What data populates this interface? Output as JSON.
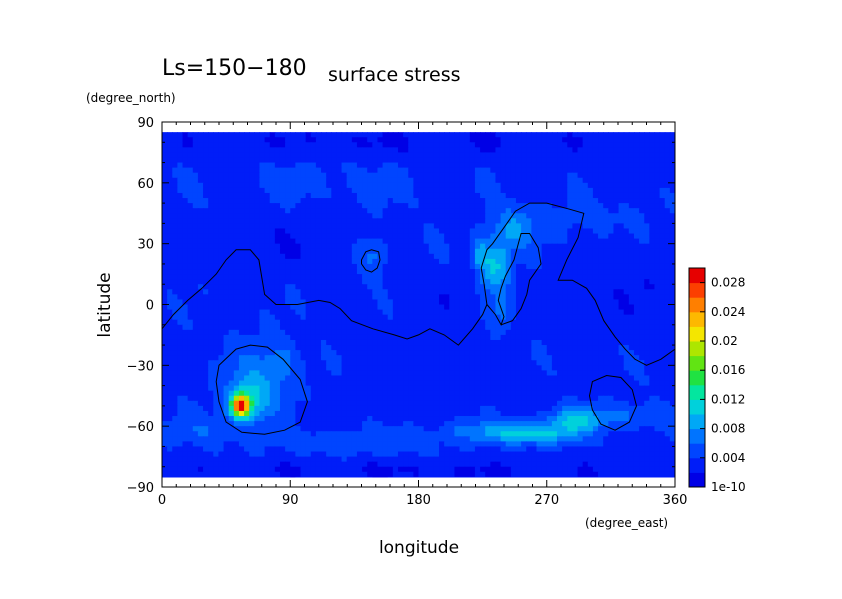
{
  "chart_data": {
    "type": "heatmap",
    "title": "Ls=150−180",
    "subtitle": "surface stress",
    "xlabel": "longitude",
    "ylabel": "latitude",
    "x_unit": "(degree_east)",
    "y_unit": "(degree_north)",
    "xlim": [
      0,
      360
    ],
    "ylim": [
      -90,
      90
    ],
    "x_ticks": [
      "0",
      "90",
      "180",
      "270",
      "360"
    ],
    "y_ticks": [
      "90",
      "60",
      "30",
      "0",
      "−30",
      "−60",
      "−90"
    ],
    "data_lat_range": [
      -85,
      85
    ],
    "colorbar": {
      "min": 1e-10,
      "max": 0.03,
      "labels": [
        "1e-10",
        "0.004",
        "0.008",
        "0.012",
        "0.016",
        "0.02",
        "0.024",
        "0.028"
      ]
    },
    "base_value": 0.0035,
    "blobs": [
      {
        "lon": 55,
        "lat": -50,
        "rx": 6,
        "ry": 5,
        "amp": 0.022
      },
      {
        "lon": 60,
        "lat": -48,
        "rx": 14,
        "ry": 10,
        "amp": 0.006
      },
      {
        "lon": 68,
        "lat": -38,
        "rx": 22,
        "ry": 18,
        "amp": 0.0035
      },
      {
        "lon": 85,
        "lat": -28,
        "rx": 12,
        "ry": 10,
        "amp": 0.0025
      },
      {
        "lon": 230,
        "lat": 20,
        "rx": 8,
        "ry": 14,
        "amp": 0.0065
      },
      {
        "lon": 222,
        "lat": 25,
        "rx": 4,
        "ry": 8,
        "amp": 0.004
      },
      {
        "lon": 240,
        "lat": 20,
        "rx": 6,
        "ry": 12,
        "amp": 0.0045
      },
      {
        "lon": 248,
        "lat": 38,
        "rx": 14,
        "ry": 10,
        "amp": 0.0045
      },
      {
        "lon": 238,
        "lat": -5,
        "rx": 7,
        "ry": 10,
        "amp": 0.003
      },
      {
        "lon": 148,
        "lat": 24,
        "rx": 10,
        "ry": 10,
        "amp": 0.0035
      },
      {
        "lon": 262,
        "lat": -64,
        "rx": 28,
        "ry": 5,
        "amp": 0.0065
      },
      {
        "lon": 290,
        "lat": -57,
        "rx": 18,
        "ry": 6,
        "amp": 0.0065
      },
      {
        "lon": 230,
        "lat": -62,
        "rx": 35,
        "ry": 5,
        "amp": 0.0035
      },
      {
        "lon": 330,
        "lat": -55,
        "rx": 30,
        "ry": 6,
        "amp": 0.003
      },
      {
        "lon": 140,
        "lat": -68,
        "rx": 60,
        "ry": 6,
        "amp": 0.002
      },
      {
        "lon": 30,
        "lat": -62,
        "rx": 25,
        "ry": 7,
        "amp": 0.002
      },
      {
        "lon": 300,
        "lat": 42,
        "rx": 40,
        "ry": 10,
        "amp": 0.0012
      },
      {
        "lon": 120,
        "lat": 60,
        "rx": 80,
        "ry": 12,
        "amp": 0.001
      },
      {
        "lon": 90,
        "lat": 30,
        "rx": 50,
        "ry": 15,
        "amp": -0.001
      },
      {
        "lon": 200,
        "lat": 0,
        "rx": 40,
        "ry": 15,
        "amp": -0.0008
      },
      {
        "lon": 330,
        "lat": 10,
        "rx": 30,
        "ry": 20,
        "amp": -0.0012
      },
      {
        "lon": 180,
        "lat": -40,
        "rx": 60,
        "ry": 15,
        "amp": -0.0008
      },
      {
        "lon": 180,
        "lat": 80,
        "rx": 200,
        "ry": 8,
        "amp": -0.0015
      },
      {
        "lon": 180,
        "lat": -82,
        "rx": 200,
        "ry": 5,
        "amp": -0.0015
      }
    ],
    "contours": [
      {
        "name": "topography-contour-dichotomy",
        "points": [
          [
            0,
            -12
          ],
          [
            8,
            -5
          ],
          [
            18,
            2
          ],
          [
            28,
            8
          ],
          [
            38,
            15
          ],
          [
            45,
            22
          ],
          [
            52,
            27
          ],
          [
            62,
            27
          ],
          [
            68,
            22
          ],
          [
            72,
            5
          ],
          [
            80,
            0
          ],
          [
            95,
            0
          ],
          [
            110,
            2
          ],
          [
            118,
            1
          ],
          [
            125,
            -2
          ],
          [
            133,
            -8
          ],
          [
            148,
            -12
          ],
          [
            163,
            -15
          ],
          [
            172,
            -17
          ],
          [
            180,
            -15
          ],
          [
            188,
            -12
          ],
          [
            198,
            -15
          ],
          [
            208,
            -20
          ],
          [
            218,
            -12
          ],
          [
            225,
            -5
          ],
          [
            228,
            0
          ]
        ]
      },
      {
        "name": "topography-contour-tharsis",
        "points": [
          [
            228,
            0
          ],
          [
            226,
            10
          ],
          [
            224,
            18
          ],
          [
            228,
            27
          ],
          [
            232,
            30
          ],
          [
            236,
            34
          ],
          [
            242,
            40
          ],
          [
            248,
            46
          ],
          [
            258,
            50
          ],
          [
            270,
            50
          ],
          [
            286,
            47
          ],
          [
            296,
            45
          ],
          [
            292,
            33
          ],
          [
            284,
            22
          ],
          [
            278,
            12
          ],
          [
            288,
            12
          ],
          [
            298,
            8
          ],
          [
            304,
            2
          ],
          [
            310,
            -8
          ],
          [
            318,
            -16
          ],
          [
            325,
            -22
          ],
          [
            332,
            -27
          ],
          [
            340,
            -30
          ],
          [
            350,
            -27
          ],
          [
            360,
            -22
          ]
        ]
      },
      {
        "name": "topography-contour-tharsis-inner",
        "points": [
          [
            228,
            0
          ],
          [
            234,
            -5
          ],
          [
            238,
            -10
          ],
          [
            240,
            -6
          ],
          [
            236,
            2
          ],
          [
            238,
            8
          ],
          [
            241,
            14
          ],
          [
            247,
            22
          ],
          [
            250,
            30
          ],
          [
            252,
            35
          ],
          [
            258,
            35
          ],
          [
            264,
            28
          ],
          [
            266,
            20
          ],
          [
            258,
            12
          ],
          [
            256,
            5
          ],
          [
            252,
            -2
          ],
          [
            246,
            -8
          ],
          [
            238,
            -10
          ]
        ]
      },
      {
        "name": "topography-contour-elysium",
        "closed": true,
        "points": [
          [
            140,
            22
          ],
          [
            143,
            26
          ],
          [
            147,
            27
          ],
          [
            152,
            26
          ],
          [
            153,
            22
          ],
          [
            151,
            18
          ],
          [
            147,
            16
          ],
          [
            143,
            17
          ],
          [
            140,
            20
          ]
        ]
      },
      {
        "name": "topography-contour-hellas",
        "closed": true,
        "points": [
          [
            40,
            -30
          ],
          [
            52,
            -22
          ],
          [
            62,
            -20
          ],
          [
            74,
            -21
          ],
          [
            85,
            -27
          ],
          [
            97,
            -37
          ],
          [
            102,
            -48
          ],
          [
            97,
            -58
          ],
          [
            86,
            -62
          ],
          [
            72,
            -64
          ],
          [
            56,
            -63
          ],
          [
            45,
            -58
          ],
          [
            40,
            -48
          ],
          [
            38,
            -38
          ]
        ]
      },
      {
        "name": "topography-contour-argyre",
        "closed": true,
        "points": [
          [
            302,
            -38
          ],
          [
            312,
            -35
          ],
          [
            322,
            -36
          ],
          [
            330,
            -42
          ],
          [
            333,
            -50
          ],
          [
            328,
            -58
          ],
          [
            318,
            -62
          ],
          [
            308,
            -59
          ],
          [
            302,
            -52
          ],
          [
            300,
            -45
          ]
        ]
      }
    ]
  }
}
